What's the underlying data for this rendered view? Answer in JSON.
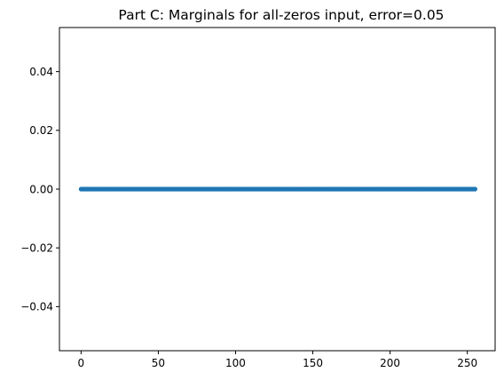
{
  "chart_data": {
    "type": "scatter",
    "title": "Part C: Marginals for all-zeros input, error=0.05",
    "xlabel": "",
    "ylabel": "",
    "xlim": [
      -14,
      268
    ],
    "ylim": [
      -0.055,
      0.055
    ],
    "xticks": [
      0,
      50,
      100,
      150,
      200,
      250
    ],
    "xtick_labels": [
      "0",
      "50",
      "100",
      "150",
      "200",
      "250"
    ],
    "yticks": [
      0.04,
      0.02,
      0.0,
      -0.02,
      -0.04
    ],
    "ytick_labels": [
      "0.04",
      "0.02",
      "0.00",
      "−0.02",
      "−0.04"
    ],
    "grid": false,
    "legend": "none",
    "series": [
      {
        "x_start": 0,
        "x_end": 255,
        "x_step": 1,
        "y_constant": 0.0,
        "color": "#1f77b4"
      }
    ]
  }
}
